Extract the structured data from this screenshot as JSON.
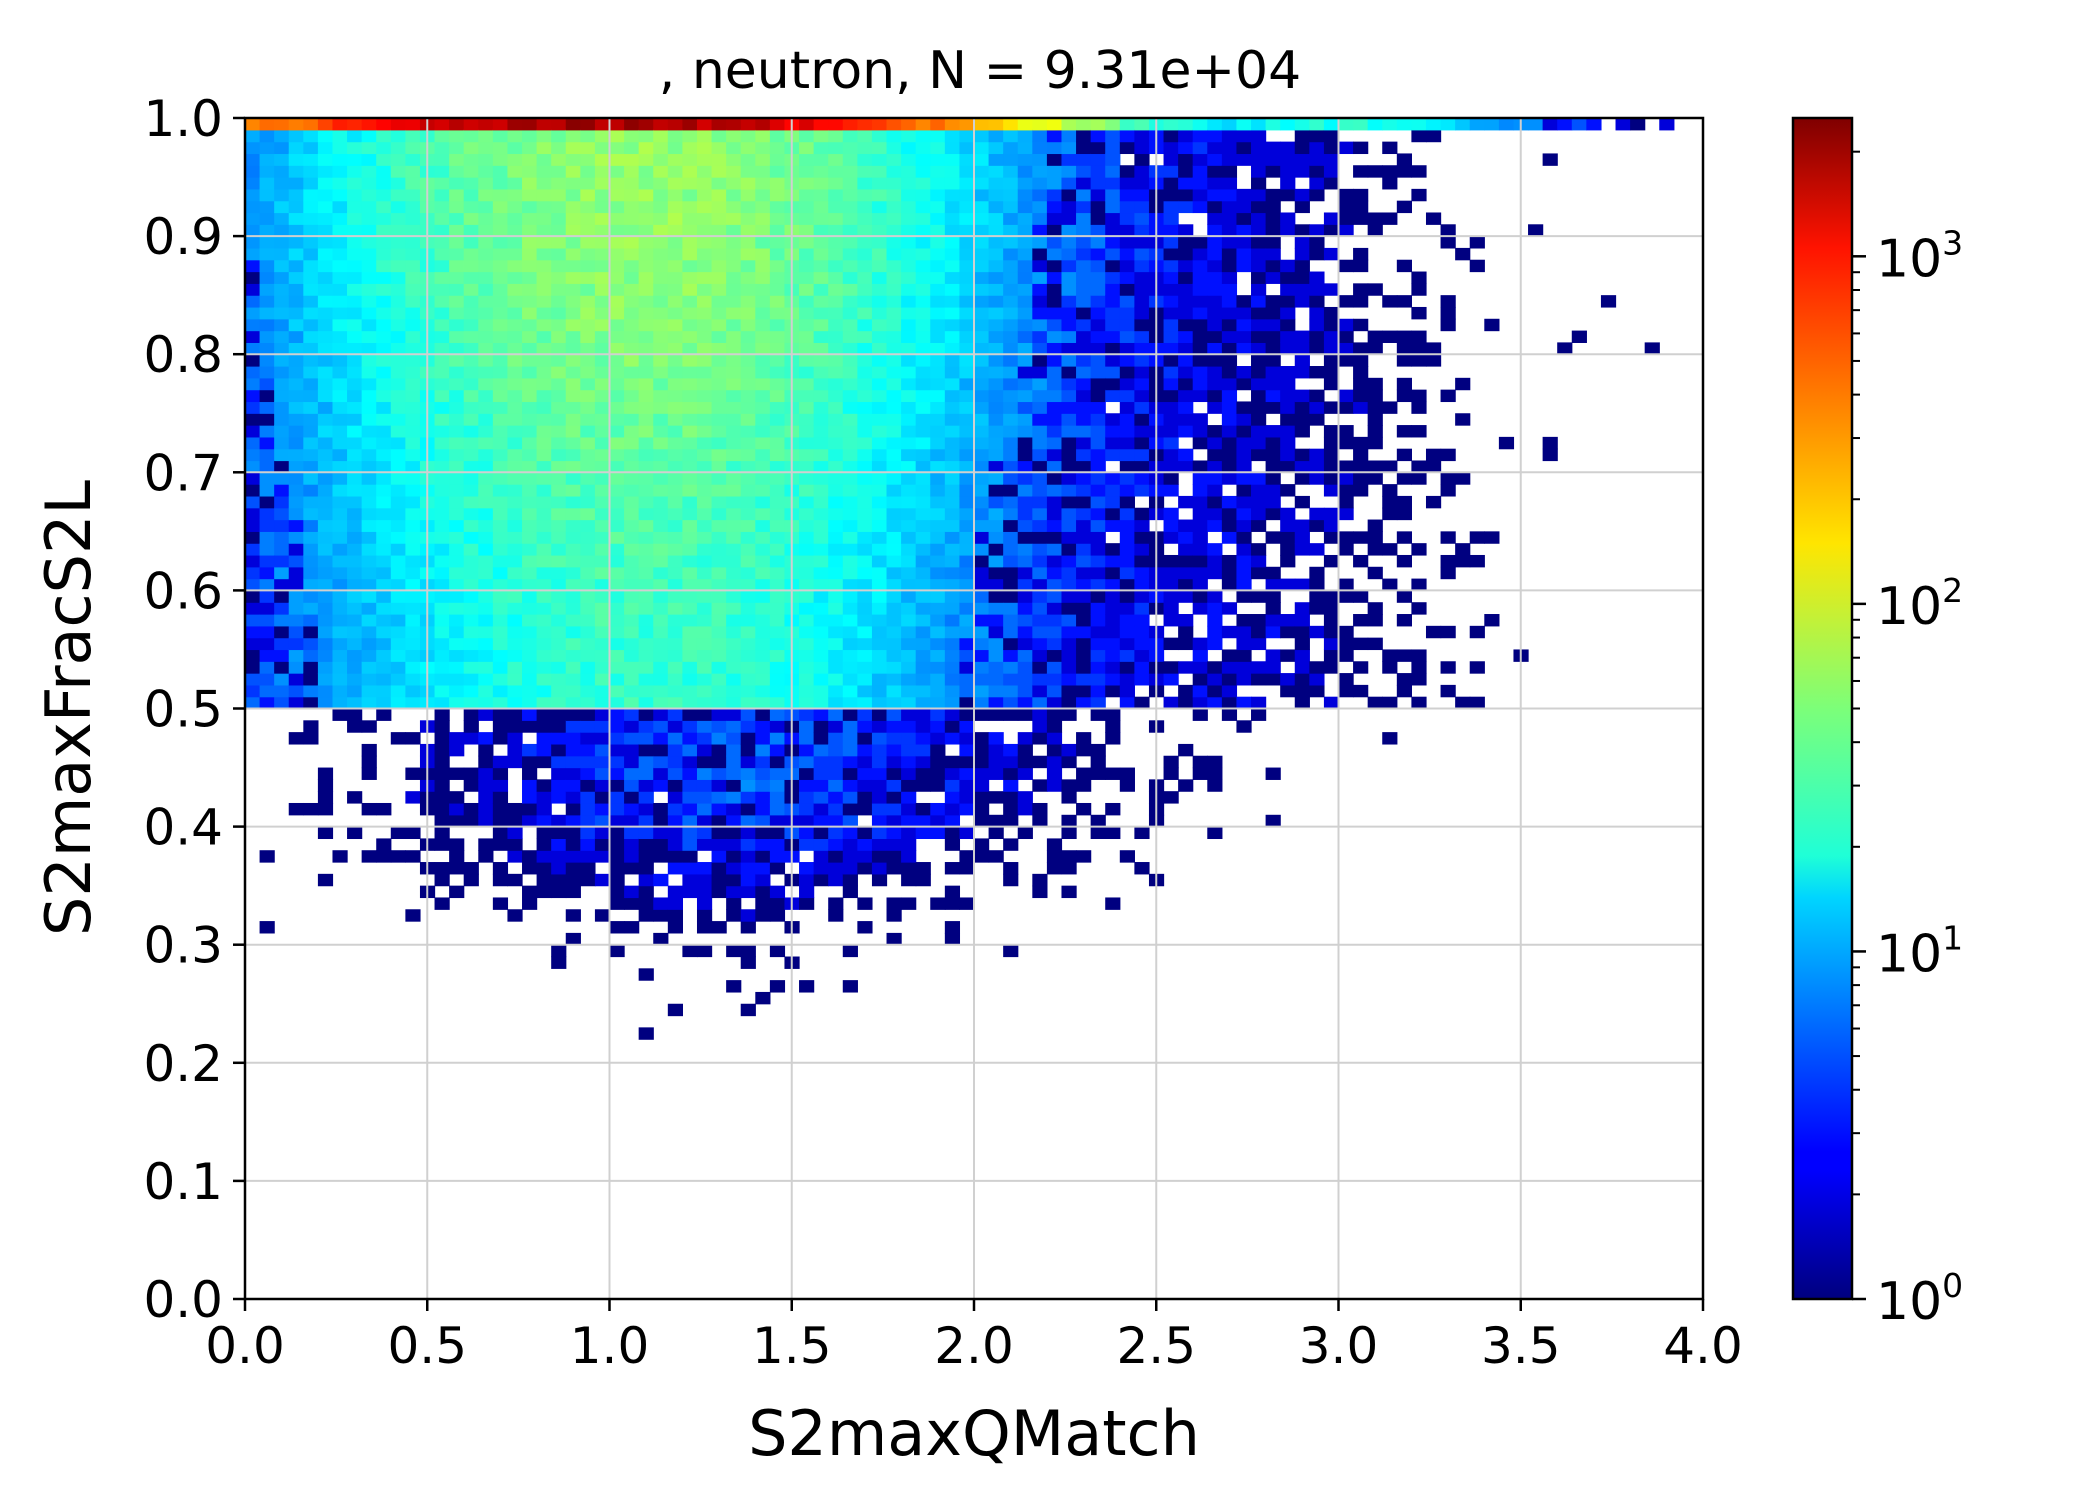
{
  "chart_data": {
    "type": "heatmap",
    "title": ", neutron, N = 9.31e+04",
    "xlabel": "S2maxQMatch",
    "ylabel": "S2maxFracS2L",
    "xlim": [
      0.0,
      4.0
    ],
    "ylim": [
      0.0,
      1.0
    ],
    "xticks": [
      "0.0",
      "0.5",
      "1.0",
      "1.5",
      "2.0",
      "2.5",
      "3.0",
      "3.5",
      "4.0"
    ],
    "yticks": [
      "0.0",
      "0.1",
      "0.2",
      "0.3",
      "0.4",
      "0.5",
      "0.6",
      "0.7",
      "0.8",
      "0.9",
      "1.0"
    ],
    "grid": true,
    "bins": {
      "nx": 100,
      "ny": 100
    },
    "colormap": "jet",
    "color_scale": "log",
    "colorbar": {
      "range": [
        1,
        2500
      ],
      "ticks": [
        {
          "base": "10",
          "exponent": "0"
        },
        {
          "base": "10",
          "exponent": "1"
        },
        {
          "base": "10",
          "exponent": "2"
        },
        {
          "base": "10",
          "exponent": "3"
        }
      ]
    },
    "total_events": 93100,
    "density_summary": {
      "peak_ridge": {
        "y": 0.995,
        "x_range": [
          0.7,
          1.3
        ],
        "count_approx": 2000
      },
      "main_band": {
        "y_range": [
          0.5,
          1.0
        ],
        "x_center": 1.1,
        "count_approx": 60
      },
      "secondary_band": {
        "y_range": [
          0.3,
          0.5
        ],
        "x_range": [
          0.7,
          2.8
        ],
        "count_approx": 4
      },
      "y_cutoff_step": 0.5
    }
  }
}
